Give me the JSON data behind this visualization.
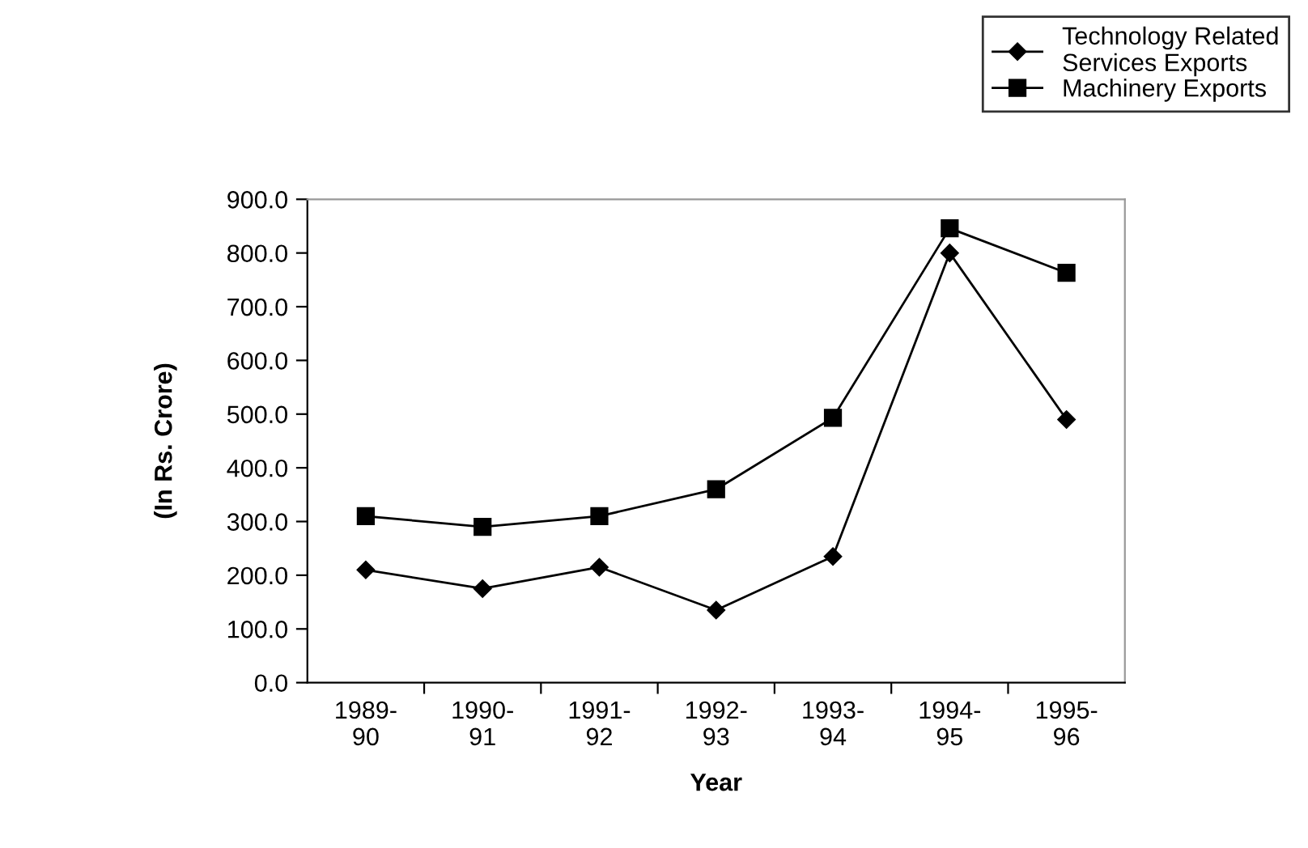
{
  "chart_data": {
    "type": "line",
    "xlabel": "Year",
    "ylabel": "(In Rs. Crore)",
    "categories": [
      "1989-\n90",
      "1990-\n91",
      "1991-\n92",
      "1992-\n93",
      "1993-\n94",
      "1994-\n95",
      "1995-\n96"
    ],
    "series": [
      {
        "name": "Technology Related\nServices Exports",
        "color": "#000000",
        "marker": "diamond",
        "values": [
          210,
          175,
          215,
          135,
          235,
          800,
          490
        ]
      },
      {
        "name": "Machinery Exports",
        "color": "#000000",
        "marker": "square",
        "values": [
          310,
          290,
          310,
          360,
          493,
          846,
          763
        ]
      }
    ],
    "ylim": [
      0,
      900
    ],
    "yticks": [
      {
        "value": 0,
        "label": "0.0"
      },
      {
        "value": 100,
        "label": "100.0"
      },
      {
        "value": 200,
        "label": "200.0"
      },
      {
        "value": 300,
        "label": "300.0"
      },
      {
        "value": 400,
        "label": "400.0"
      },
      {
        "value": 500,
        "label": "500.0"
      },
      {
        "value": 600,
        "label": "600.0"
      },
      {
        "value": 700,
        "label": "700.0"
      },
      {
        "value": 800,
        "label": "800.0"
      },
      {
        "value": 900,
        "label": "900.0"
      }
    ],
    "grid": false,
    "legend": "top right",
    "line_style": "solid"
  }
}
